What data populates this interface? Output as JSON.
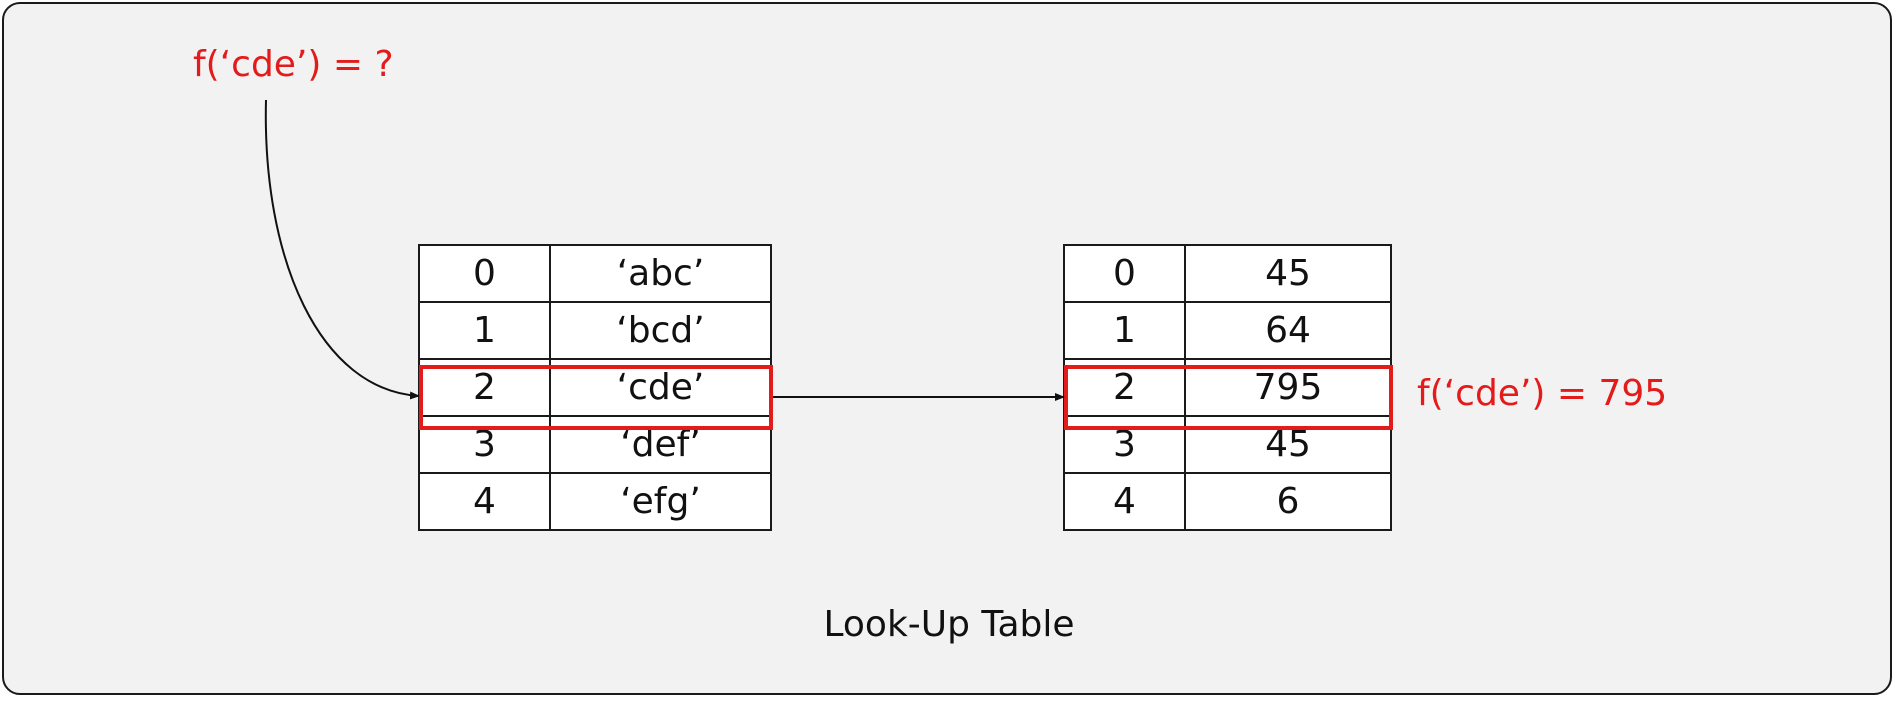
{
  "query_label": "f(‘cde’) = ?",
  "result_label": "f(‘cde’) = 795",
  "caption": "Look-Up Table",
  "highlight_color": "#e31b1b",
  "keys_table": {
    "rows": [
      {
        "index": "0",
        "key": "‘abc’"
      },
      {
        "index": "1",
        "key": "‘bcd’"
      },
      {
        "index": "2",
        "key": "‘cde’"
      },
      {
        "index": "3",
        "key": "‘def’"
      },
      {
        "index": "4",
        "key": "‘efg’"
      }
    ]
  },
  "values_table": {
    "rows": [
      {
        "index": "0",
        "value": "45"
      },
      {
        "index": "1",
        "value": "64"
      },
      {
        "index": "2",
        "value": "795"
      },
      {
        "index": "3",
        "value": "45"
      },
      {
        "index": "4",
        "value": "6"
      }
    ]
  },
  "highlighted_row": 2
}
